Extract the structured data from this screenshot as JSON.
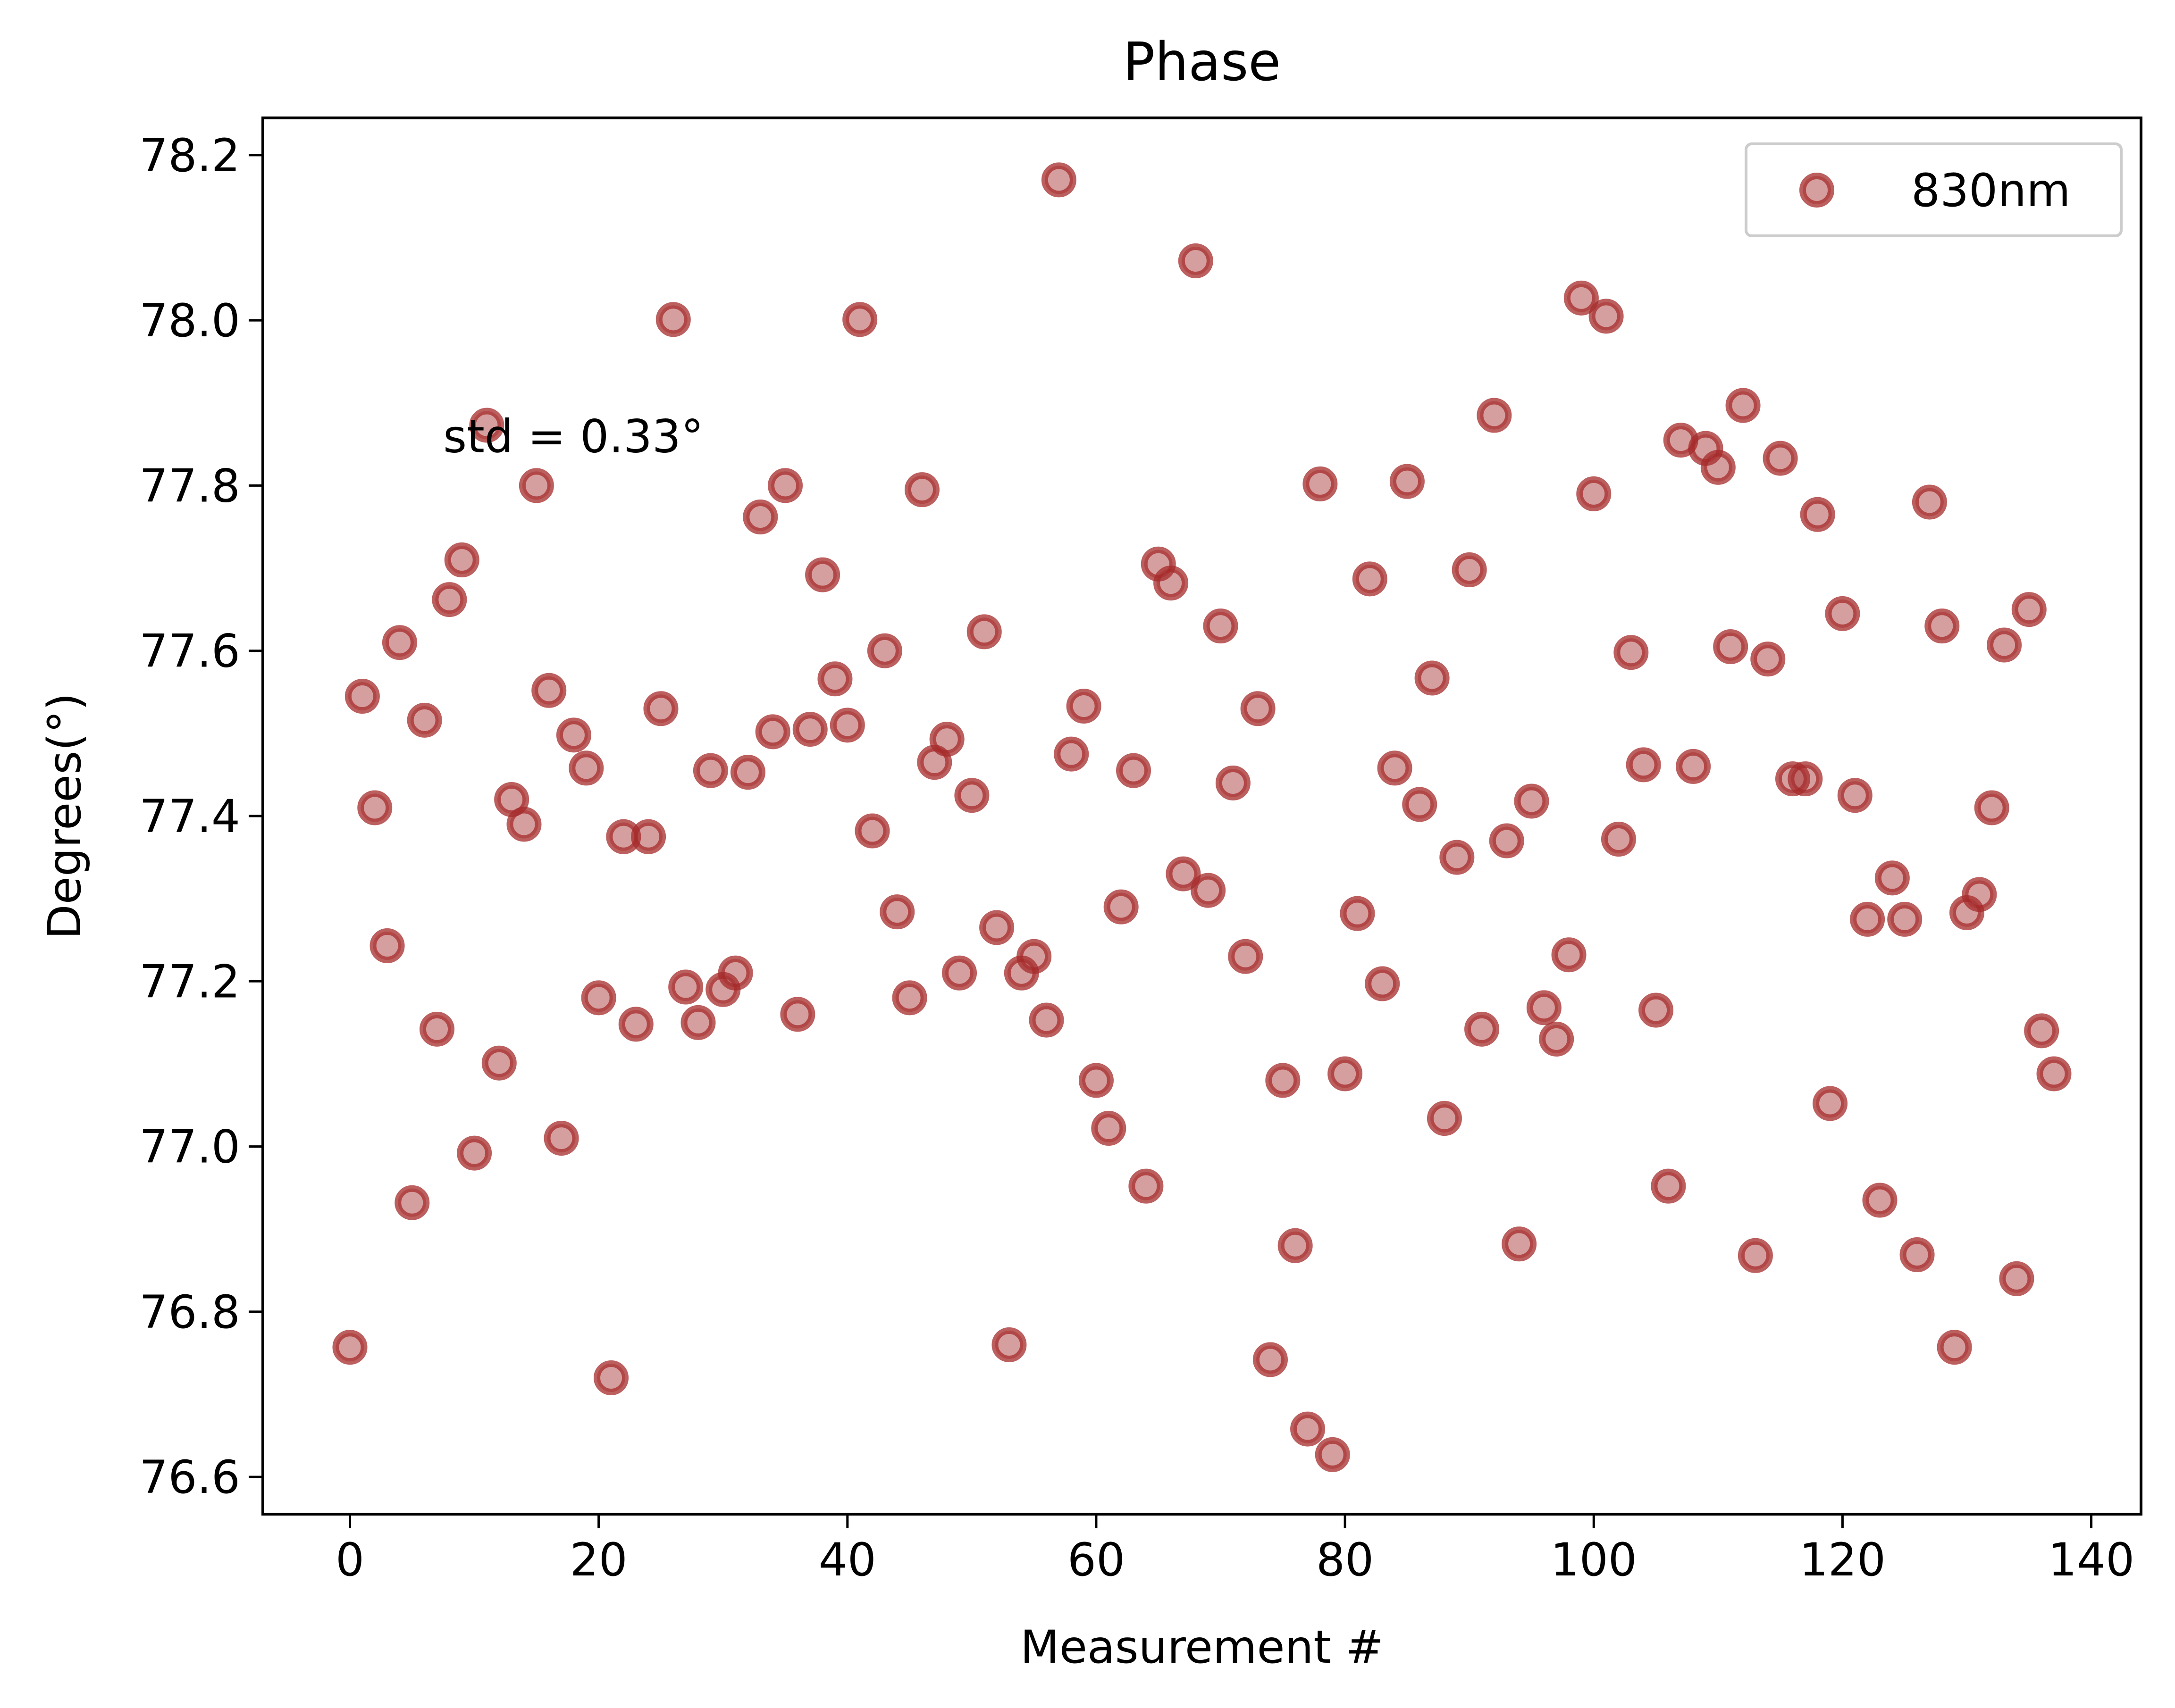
{
  "chart_data": {
    "type": "scatter",
    "title": "Phase",
    "xlabel": "Measurement #",
    "ylabel": "Degrees(°)",
    "xlim": [
      -7,
      144
    ],
    "ylim": [
      76.555,
      78.245
    ],
    "xticks": [
      0,
      20,
      40,
      60,
      80,
      100,
      120,
      140
    ],
    "yticks": [
      76.6,
      76.8,
      77.0,
      77.2,
      77.4,
      77.6,
      77.8,
      78.0,
      78.2
    ],
    "xtick_labels": [
      "0",
      "20",
      "40",
      "60",
      "80",
      "100",
      "120",
      "140"
    ],
    "ytick_labels": [
      "76.6",
      "76.8",
      "77.0",
      "77.2",
      "77.4",
      "77.6",
      "77.8",
      "78.0",
      "78.2"
    ],
    "legend": {
      "placement": "top-right",
      "entries": [
        "830nm"
      ]
    },
    "grid": false,
    "annotation": {
      "text": "std = 0.33°",
      "x": 7.5,
      "y": 77.86
    },
    "series": [
      {
        "name": "830nm",
        "color": "#a52a2a",
        "x": [
          0,
          1,
          2,
          3,
          4,
          5,
          6,
          7,
          8,
          9,
          10,
          11,
          12,
          13,
          14,
          15,
          16,
          17,
          18,
          19,
          20,
          21,
          22,
          23,
          24,
          25,
          26,
          27,
          28,
          29,
          30,
          31,
          32,
          33,
          34,
          35,
          36,
          37,
          38,
          39,
          40,
          41,
          42,
          43,
          44,
          45,
          46,
          47,
          48,
          49,
          50,
          51,
          52,
          53,
          54,
          55,
          56,
          57,
          58,
          59,
          60,
          61,
          62,
          63,
          64,
          65,
          66,
          67,
          68,
          69,
          70,
          71,
          72,
          73,
          74,
          75,
          76,
          77,
          78,
          79,
          80,
          81,
          82,
          83,
          84,
          85,
          86,
          87,
          88,
          89,
          90,
          91,
          92,
          93,
          94,
          95,
          96,
          97,
          98,
          99,
          100,
          101,
          102,
          103,
          104,
          105,
          106,
          107,
          108,
          109,
          110,
          111,
          112,
          113,
          114,
          115,
          116,
          117,
          118,
          119,
          120,
          121,
          122,
          123,
          124,
          125,
          126,
          127,
          128,
          129,
          130,
          131,
          132,
          133,
          134,
          135,
          136,
          137
        ],
        "y": [
          76.757,
          77.545,
          77.41,
          77.243,
          77.61,
          76.932,
          77.516,
          77.142,
          77.662,
          77.71,
          76.992,
          77.873,
          77.101,
          77.42,
          77.39,
          77.8,
          77.552,
          77.01,
          77.498,
          77.458,
          77.18,
          76.72,
          77.375,
          77.148,
          77.375,
          77.53,
          78.001,
          77.193,
          77.15,
          77.455,
          77.19,
          77.21,
          77.453,
          77.762,
          77.502,
          77.8,
          77.16,
          77.505,
          77.692,
          77.566,
          77.51,
          78.001,
          77.382,
          77.6,
          77.284,
          77.18,
          77.795,
          77.465,
          77.493,
          77.21,
          77.425,
          77.623,
          77.265,
          76.76,
          77.21,
          77.23,
          77.153,
          78.17,
          77.475,
          77.533,
          77.08,
          77.022,
          77.29,
          77.455,
          76.952,
          77.705,
          77.682,
          77.33,
          78.072,
          77.31,
          77.63,
          77.44,
          77.23,
          77.53,
          76.742,
          77.08,
          76.88,
          76.658,
          77.802,
          76.627,
          77.088,
          77.282,
          77.687,
          77.197,
          77.458,
          77.805,
          77.414,
          77.567,
          77.034,
          77.35,
          77.698,
          77.142,
          77.885,
          77.37,
          76.882,
          77.418,
          77.168,
          77.13,
          77.232,
          78.027,
          77.79,
          78.005,
          77.372,
          77.598,
          77.462,
          77.165,
          76.952,
          77.855,
          77.46,
          77.845,
          77.822,
          77.605,
          77.897,
          76.868,
          77.59,
          77.833,
          77.445,
          77.445,
          77.765,
          77.052,
          77.645,
          77.425,
          77.275,
          76.935,
          77.325,
          77.275,
          76.869,
          77.78,
          77.63,
          76.757,
          77.283,
          77.305,
          77.41,
          77.607,
          76.84,
          77.65,
          77.14,
          77.088
        ]
      }
    ]
  }
}
